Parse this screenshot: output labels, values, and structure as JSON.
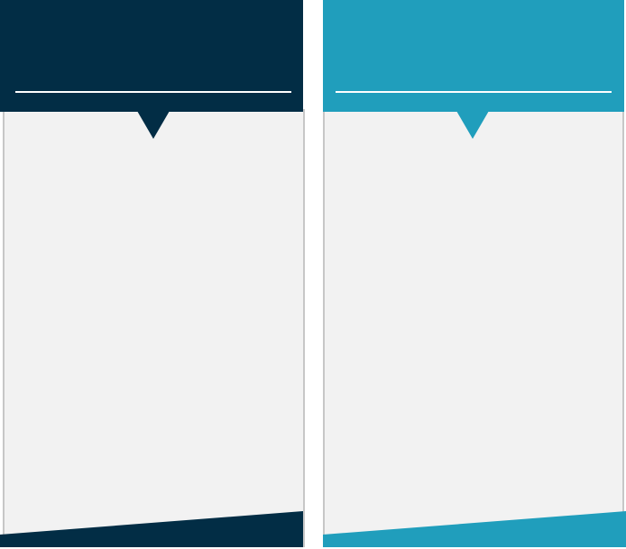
{
  "colors": {
    "left_accent": "#022d45",
    "right_accent": "#209ebc",
    "panel_background": "#f2f2f2",
    "panel_border": "#c7c7c7",
    "rule": "#ffffff"
  },
  "cards": [
    {
      "title": "",
      "body": ""
    },
    {
      "title": "",
      "body": ""
    }
  ]
}
